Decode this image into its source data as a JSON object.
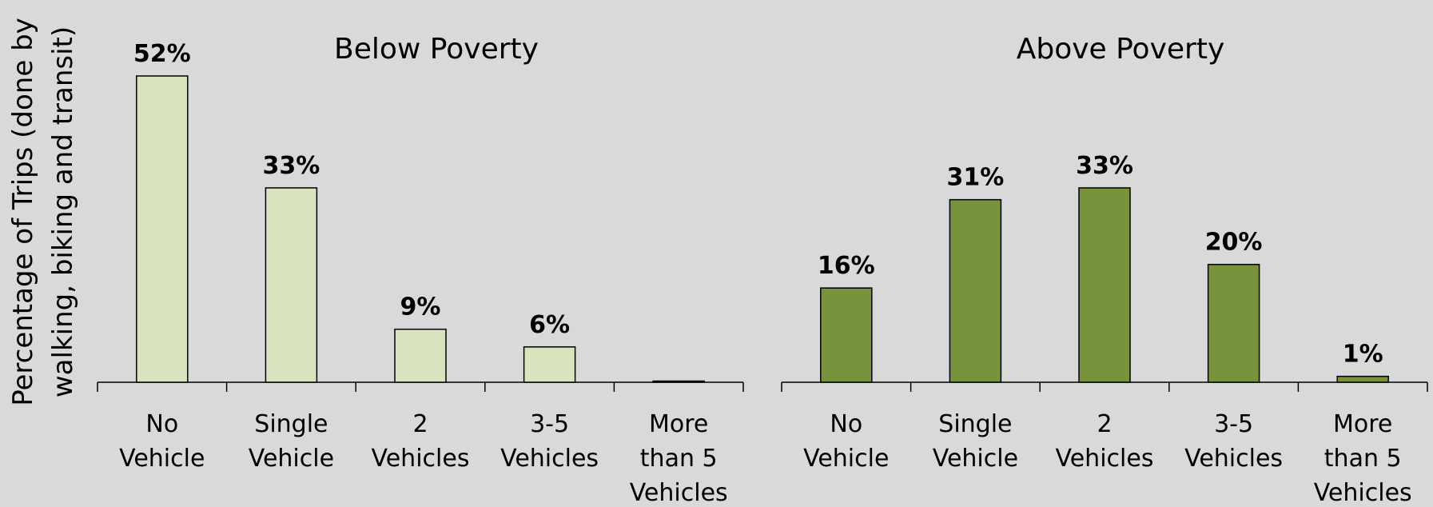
{
  "chart_data": {
    "type": "bar",
    "ylabel_lines": [
      "Percentage of Trips (done by",
      "walking, biking and transit)"
    ],
    "categories": [
      [
        "No",
        "Vehicle"
      ],
      [
        "Single",
        "Vehicle"
      ],
      [
        "2",
        "Vehicles"
      ],
      [
        "3-5",
        "Vehicles"
      ],
      [
        "More",
        "than 5",
        "Vehicles"
      ]
    ],
    "ylim": [
      0,
      52
    ],
    "grid": false,
    "panels": [
      {
        "title": "Below Poverty",
        "color": "#d7e4bd",
        "values": [
          52,
          33,
          9,
          6,
          0.2
        ],
        "data_labels": [
          "52%",
          "33%",
          "9%",
          "6%",
          ""
        ]
      },
      {
        "title": "Above Poverty",
        "color": "#77933c",
        "values": [
          16,
          31,
          33,
          20,
          1
        ],
        "data_labels": [
          "16%",
          "31%",
          "33%",
          "20%",
          "1%"
        ]
      }
    ]
  }
}
